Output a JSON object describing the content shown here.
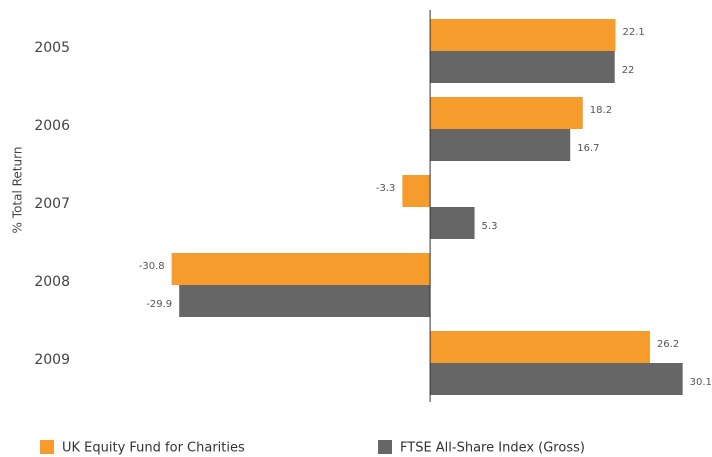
{
  "chart_data": {
    "type": "hbar",
    "y_label": "% Total Return",
    "categories": [
      "2005",
      "2006",
      "2007",
      "2008",
      "2009"
    ],
    "series": [
      {
        "name": "UK Equity Fund for Charities",
        "color": "#f59c2c",
        "values": [
          22.1,
          18.2,
          -3.3,
          -30.8,
          26.2
        ]
      },
      {
        "name": "FTSE All-Share Index (Gross)",
        "color": "#666666",
        "values": [
          22.0,
          16.7,
          5.3,
          -29.9,
          30.1
        ]
      }
    ],
    "xlim": [
      -36,
      33
    ],
    "legend": "bottom"
  }
}
